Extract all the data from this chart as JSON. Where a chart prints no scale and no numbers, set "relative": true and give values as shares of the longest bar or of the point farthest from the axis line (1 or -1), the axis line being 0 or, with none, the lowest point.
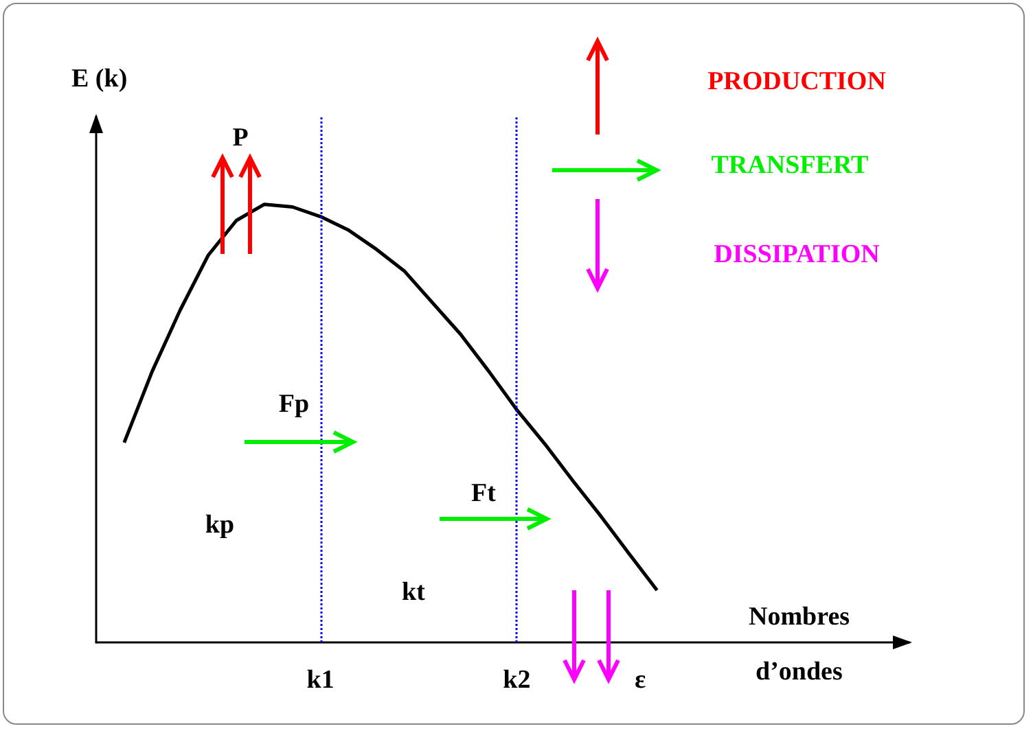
{
  "chart_data": {
    "type": "line",
    "relative": true,
    "xlabel": "Nombres d’ondes",
    "ylabel": "E (k)",
    "categories": [
      null,
      null,
      null,
      null,
      null,
      null,
      null,
      null,
      "k1",
      null,
      null,
      null,
      null,
      null,
      null,
      "k2",
      null,
      null,
      null,
      null,
      null,
      null,
      null,
      null,
      null,
      null,
      null,
      null,
      null,
      null
    ],
    "series": [
      {
        "color": "#000000",
        "values": [
          null,
          0.456,
          0.619,
          0.759,
          0.884,
          0.963,
          1,
          0.994,
          0.972,
          0.941,
          0.897,
          0.847,
          0.775,
          0.703,
          0.619,
          0.531,
          0.453,
          0.369,
          0.288,
          0.203,
          0.119,
          null,
          null,
          null,
          null,
          null,
          null,
          null,
          null,
          null
        ]
      }
    ],
    "ref_lines": [
      {
        "axis": "x",
        "value": "k1",
        "color": "#0000ff",
        "line_style": "dotted"
      },
      {
        "axis": "x",
        "value": "k2",
        "color": "#0000ff",
        "line_style": "dotted"
      }
    ],
    "annotations": [
      "P",
      "Fp",
      "Ft",
      "kp",
      "kt",
      "ε",
      "PRODUCTION",
      "TRANSFERT",
      "DISSIPATION"
    ],
    "grid": false,
    "marker": "none",
    "line_style": "solid"
  }
}
